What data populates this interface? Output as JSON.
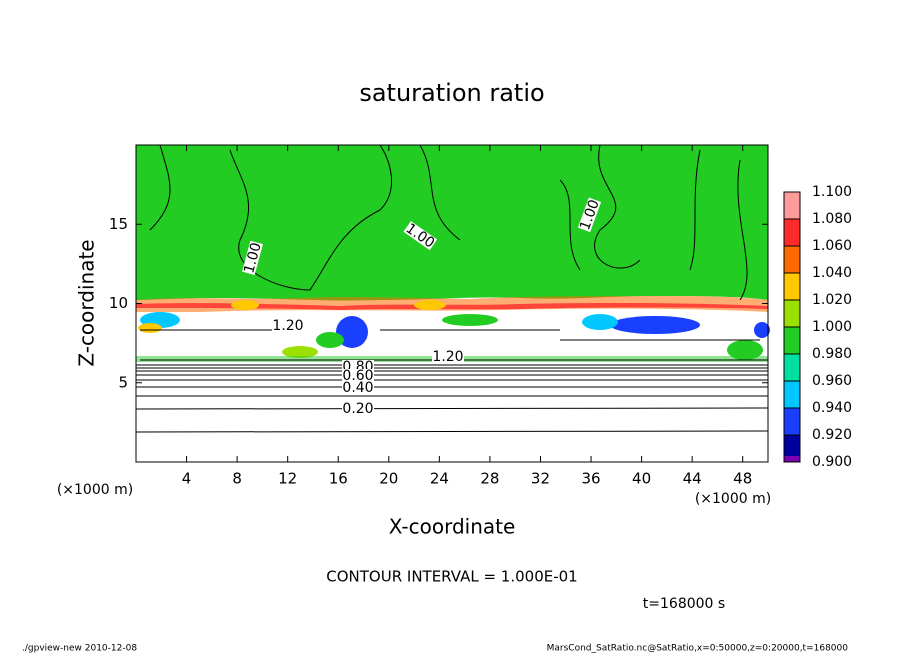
{
  "chart_data": {
    "type": "contour",
    "title": "saturation ratio",
    "xlabel": "X-coordinate",
    "ylabel": "Z-coordinate",
    "xunits": "(×1000 m)",
    "yunits": "(×1000 m)",
    "xlim": [
      0,
      50
    ],
    "ylim": [
      0,
      20
    ],
    "xticks": [
      4,
      8,
      12,
      16,
      20,
      24,
      28,
      32,
      36,
      40,
      44,
      48
    ],
    "yticks": [
      5,
      10,
      15
    ],
    "colorbar": {
      "levels": [
        {
          "value": 1.1,
          "label": "1.100"
        },
        {
          "value": 1.08,
          "label": "1.080"
        },
        {
          "value": 1.06,
          "label": "1.060"
        },
        {
          "value": 1.04,
          "label": "1.040"
        },
        {
          "value": 1.02,
          "label": "1.020"
        },
        {
          "value": 1.0,
          "label": "1.000"
        },
        {
          "value": 0.98,
          "label": "0.980"
        },
        {
          "value": 0.96,
          "label": "0.960"
        },
        {
          "value": 0.94,
          "label": "0.940"
        },
        {
          "value": 0.92,
          "label": "0.920"
        },
        {
          "value": 0.9,
          "label": "0.900"
        }
      ],
      "colors": [
        "#ff9b9b",
        "#ff2a2a",
        "#ff6a00",
        "#ffc800",
        "#9be000",
        "#22cc22",
        "#00e0a0",
        "#00c8ff",
        "#1a40ff",
        "#0000a0"
      ],
      "bottom_color": "#7a00b0"
    },
    "contour_labels": [
      "1.00",
      "1.00",
      "1.00",
      "1.20",
      "1.20",
      "0.80",
      "0.60",
      "0.40",
      "0.20"
    ],
    "notes": [
      "CONTOUR INTERVAL = 1.000E-01",
      "t=168000 s"
    ],
    "footer_left": "./gpview-new  2010-12-08",
    "footer_right": "MarsCond_SatRatio.nc@SatRatio,x=0:50000,z=0:20000,t=168000"
  }
}
